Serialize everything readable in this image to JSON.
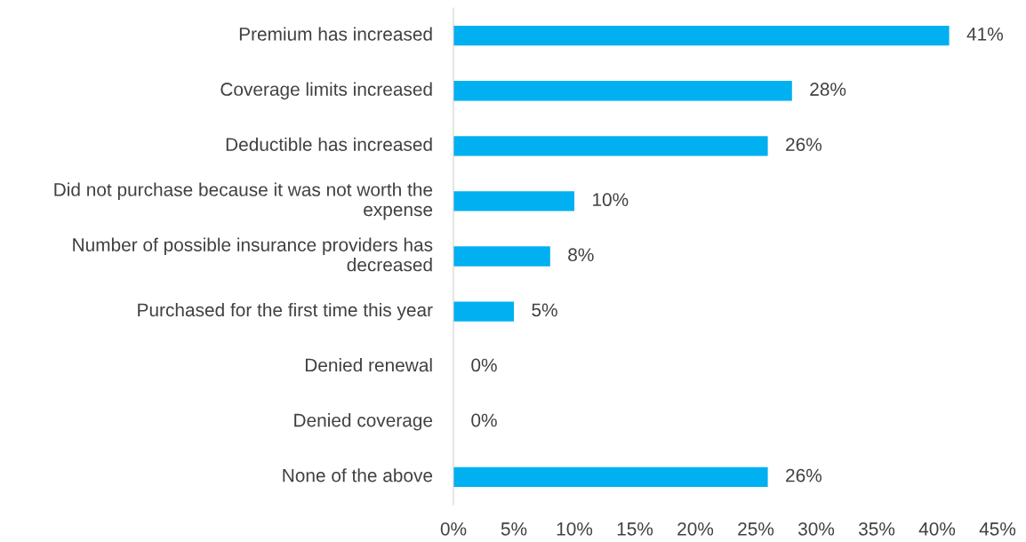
{
  "chart_data": {
    "type": "bar",
    "orientation": "horizontal",
    "categories": [
      "Premium has increased",
      "Coverage limits increased",
      "Deductible has increased",
      "Did not purchase because it was not worth the expense",
      "Number of possible insurance providers has decreased",
      "Purchased for the first time this year",
      "Denied renewal",
      "Denied coverage",
      "None of the above"
    ],
    "values": [
      41,
      28,
      26,
      10,
      8,
      5,
      0,
      0,
      26
    ],
    "value_labels": [
      "41%",
      "28%",
      "26%",
      "10%",
      "8%",
      "5%",
      "0%",
      "0%",
      "26%"
    ],
    "color": "#00b0f0",
    "xlim": [
      0,
      45
    ],
    "xticks": [
      {
        "value": 0,
        "label": "0%"
      },
      {
        "value": 5,
        "label": "5%"
      },
      {
        "value": 10,
        "label": "10%"
      },
      {
        "value": 15,
        "label": "15%"
      },
      {
        "value": 20,
        "label": "20%"
      },
      {
        "value": 25,
        "label": "25%"
      },
      {
        "value": 30,
        "label": "30%"
      },
      {
        "value": 35,
        "label": "35%"
      },
      {
        "value": 40,
        "label": "40%"
      },
      {
        "value": 45,
        "label": "45%"
      }
    ],
    "grid": false,
    "legend": false
  }
}
